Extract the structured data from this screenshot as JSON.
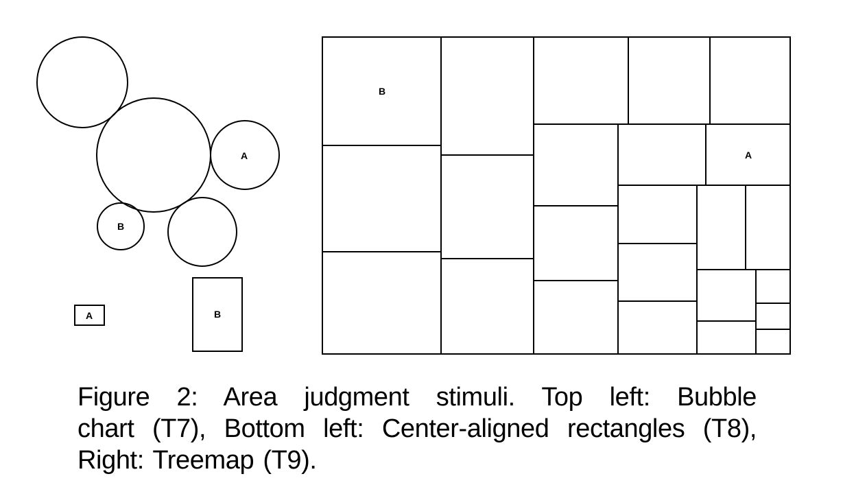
{
  "figure": {
    "bubble_chart": {
      "label_a": "A",
      "label_b": "B"
    },
    "rectangles": {
      "label_a": "A",
      "label_b": "B"
    },
    "treemap": {
      "label_a": "A",
      "label_b": "B"
    }
  },
  "caption": {
    "line1": "Figure 2:  Area judgment stimuli.  Top left:  Bubble",
    "line2": "chart (T7), Bottom left: Center-aligned rectangles (T8),",
    "line3": "Right: Treemap (T9)."
  }
}
